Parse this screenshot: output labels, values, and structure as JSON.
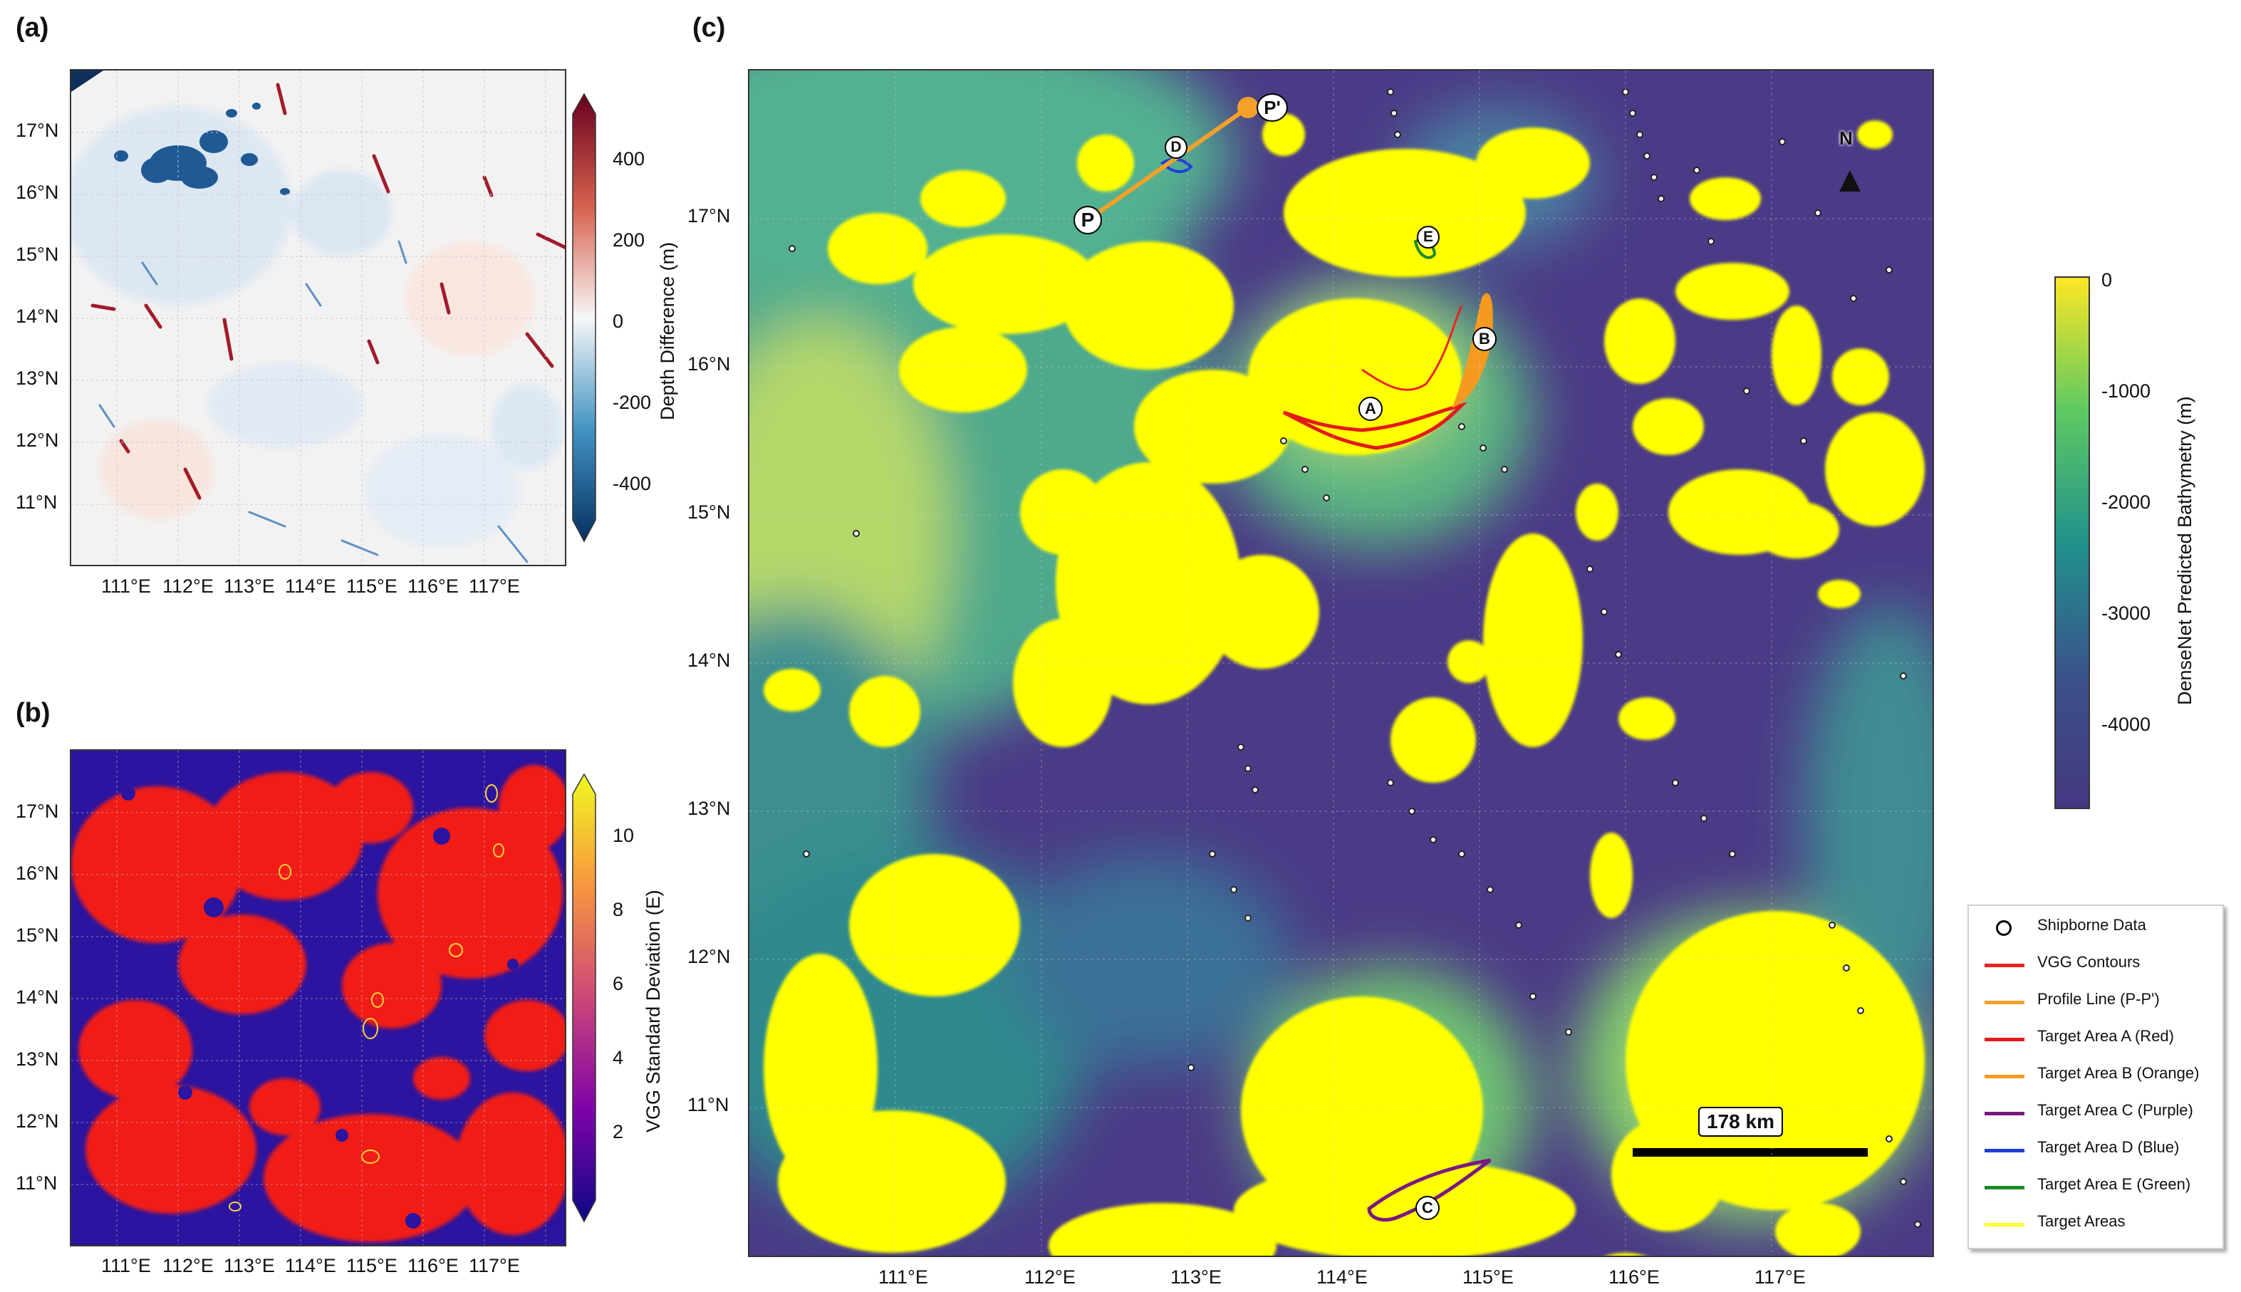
{
  "panels": {
    "a": {
      "letter": "(a)",
      "lat_ticks": [
        "17°N",
        "16°N",
        "15°N",
        "14°N",
        "13°N",
        "12°N",
        "11°N"
      ],
      "lon_ticks": [
        "111°E",
        "112°E",
        "113°E",
        "114°E",
        "115°E",
        "116°E",
        "117°E"
      ],
      "colorbar": {
        "label": "Depth Difference (m)",
        "ticks": [
          "400",
          "200",
          "0",
          "-200",
          "-400"
        ],
        "colormap": "diverging red-white-blue",
        "colors": [
          "#67001f",
          "#d6604d",
          "#f7f7f7",
          "#4393c3",
          "#053061"
        ]
      }
    },
    "b": {
      "letter": "(b)",
      "lat_ticks": [
        "17°N",
        "16°N",
        "15°N",
        "14°N",
        "13°N",
        "12°N",
        "11°N"
      ],
      "lon_ticks": [
        "111°E",
        "112°E",
        "113°E",
        "114°E",
        "115°E",
        "116°E",
        "117°E"
      ],
      "colorbar": {
        "label": "VGG Standard Deviation (E)",
        "ticks": [
          "10",
          "8",
          "6",
          "4",
          "2"
        ],
        "colormap": "plasma",
        "colors": [
          "#f0f921",
          "#f89540",
          "#cc4778",
          "#7e03a8",
          "#0d0887"
        ]
      }
    },
    "c": {
      "letter": "(c)",
      "lat_ticks": [
        "17°N",
        "16°N",
        "15°N",
        "14°N",
        "13°N",
        "12°N",
        "11°N"
      ],
      "lon_ticks": [
        "111°E",
        "112°E",
        "113°E",
        "114°E",
        "115°E",
        "116°E",
        "117°E"
      ],
      "colorbar": {
        "label": "DenseNet Predicted Bathymetry (m)",
        "ticks": [
          "0",
          "-1000",
          "-2000",
          "-3000",
          "-4000"
        ],
        "colormap": "viridis",
        "colors": [
          "#fde725",
          "#5ec962",
          "#21918c",
          "#3b528b",
          "#453781"
        ]
      },
      "markers": {
        "p_start": "P",
        "p_end": "P'",
        "area_a": "A",
        "area_b": "B",
        "area_c": "C",
        "area_d": "D",
        "area_e": "E",
        "north": "N"
      },
      "scale_bar": "178 km",
      "legend": [
        {
          "label": "Shipborne Data",
          "color": "#000000",
          "symbol": "circle"
        },
        {
          "label": "VGG Contours",
          "color": "#e8251f",
          "symbol": "line"
        },
        {
          "label": "Profile Line (P-P')",
          "color": "#f5a02a",
          "symbol": "line"
        },
        {
          "label": "Target Area A (Red)",
          "color": "#e31a1c",
          "symbol": "line"
        },
        {
          "label": "Target Area B (Orange)",
          "color": "#f59a1e",
          "symbol": "line"
        },
        {
          "label": "Target Area C (Purple)",
          "color": "#7a1a80",
          "symbol": "line"
        },
        {
          "label": "Target Area D (Blue)",
          "color": "#1f3fd6",
          "symbol": "line"
        },
        {
          "label": "Target Area E (Green)",
          "color": "#1c8a2a",
          "symbol": "line"
        },
        {
          "label": "Target Areas",
          "color": "#ffff33",
          "symbol": "line"
        }
      ]
    }
  }
}
